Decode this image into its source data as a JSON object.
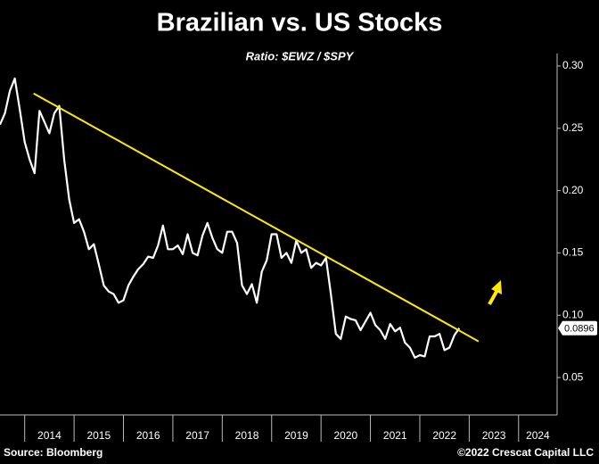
{
  "chart_data": {
    "type": "line",
    "title": "Brazilian vs. US Stocks",
    "subtitle": "Ratio: $EWZ / $SPY",
    "source": "Source: Bloomberg",
    "copyright": "©2022 Crescat Capital LLC",
    "x": [
      2013.5,
      2013.6,
      2013.7,
      2013.8,
      2013.9,
      2014.0,
      2014.1,
      2014.2,
      2014.3,
      2014.4,
      2014.5,
      2014.6,
      2014.7,
      2014.8,
      2014.9,
      2015.0,
      2015.1,
      2015.2,
      2015.3,
      2015.4,
      2015.5,
      2015.6,
      2015.7,
      2015.8,
      2015.9,
      2016.0,
      2016.1,
      2016.2,
      2016.3,
      2016.4,
      2016.5,
      2016.6,
      2016.7,
      2016.8,
      2016.9,
      2017.0,
      2017.1,
      2017.2,
      2017.3,
      2017.4,
      2017.5,
      2017.6,
      2017.7,
      2017.8,
      2017.9,
      2018.0,
      2018.1,
      2018.2,
      2018.3,
      2018.4,
      2018.5,
      2018.6,
      2018.7,
      2018.8,
      2018.9,
      2019.0,
      2019.1,
      2019.2,
      2019.3,
      2019.4,
      2019.5,
      2019.6,
      2019.7,
      2019.8,
      2019.9,
      2020.0,
      2020.1,
      2020.2,
      2020.3,
      2020.4,
      2020.5,
      2020.6,
      2020.7,
      2020.8,
      2020.9,
      2021.0,
      2021.1,
      2021.2,
      2021.3,
      2021.4,
      2021.5,
      2021.6,
      2021.7,
      2021.8,
      2021.9,
      2022.0,
      2022.1,
      2022.2,
      2022.3,
      2022.4,
      2022.5,
      2022.6,
      2022.7,
      2022.8
    ],
    "series": [
      {
        "color": "#ffffff",
        "values": [
          0.253,
          0.262,
          0.28,
          0.29,
          0.265,
          0.239,
          0.225,
          0.214,
          0.264,
          0.255,
          0.246,
          0.262,
          0.268,
          0.225,
          0.193,
          0.174,
          0.177,
          0.167,
          0.153,
          0.157,
          0.141,
          0.124,
          0.119,
          0.117,
          0.11,
          0.112,
          0.124,
          0.131,
          0.137,
          0.141,
          0.147,
          0.146,
          0.156,
          0.172,
          0.153,
          0.153,
          0.156,
          0.149,
          0.165,
          0.15,
          0.148,
          0.164,
          0.174,
          0.162,
          0.153,
          0.15,
          0.167,
          0.167,
          0.158,
          0.124,
          0.117,
          0.125,
          0.11,
          0.135,
          0.144,
          0.165,
          0.165,
          0.146,
          0.15,
          0.142,
          0.16,
          0.15,
          0.153,
          0.138,
          0.142,
          0.14,
          0.146,
          0.117,
          0.085,
          0.081,
          0.099,
          0.097,
          0.096,
          0.088,
          0.095,
          0.102,
          0.092,
          0.088,
          0.081,
          0.093,
          0.087,
          0.09,
          0.078,
          0.074,
          0.066,
          0.068,
          0.067,
          0.083,
          0.083,
          0.085,
          0.072,
          0.074,
          0.084,
          0.0896
        ]
      }
    ],
    "trendline": {
      "color": "#ffea00",
      "x": [
        2014.18,
        2023.19
      ],
      "values": [
        0.278,
        0.079
      ]
    },
    "xlim": [
      2013.5,
      2024.78
    ],
    "xticks": [
      2014,
      2015,
      2016,
      2017,
      2018,
      2019,
      2020,
      2021,
      2022,
      2023,
      2024
    ],
    "ylim": [
      0.02,
      0.31
    ],
    "yticks": [
      0.05,
      {
        "value": 0.1,
        "label": "0.10"
      },
      0.15,
      {
        "value": 0.2,
        "label": "0.20"
      },
      0.25,
      {
        "value": 0.3,
        "label": "0.30"
      }
    ]
  }
}
